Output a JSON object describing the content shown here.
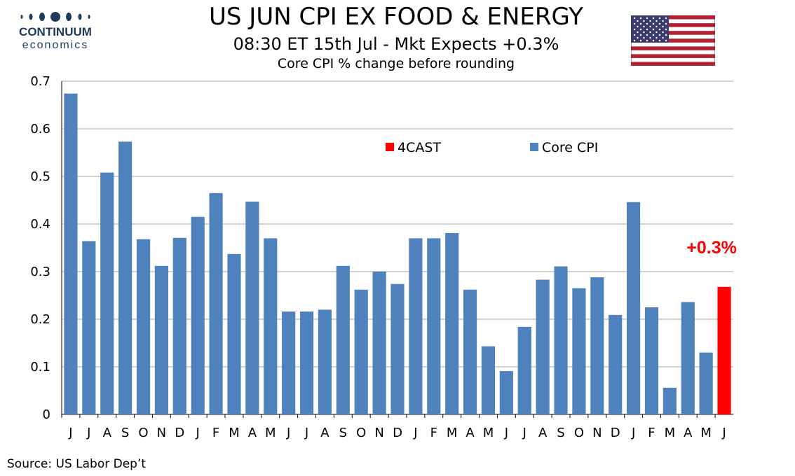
{
  "header": {
    "logo_name": "CONTINUUM",
    "logo_sub": "economics",
    "title": "US JUN CPI EX FOOD & ENERGY",
    "subtitle": "08:30 ET 15th Jul - Mkt Expects +0.3%",
    "subtitle2": "Core CPI % change before rounding",
    "flag_icon": "us-flag-icon"
  },
  "footer": {
    "source": "Source: US Labor Dep’t"
  },
  "colors": {
    "core": "#4f81bd",
    "forecast": "#ff0000",
    "grid": "#a6a6a6",
    "logo": "#1f3a5a"
  },
  "chart_data": {
    "type": "bar",
    "title": "US JUN CPI EX FOOD & ENERGY",
    "ylabel": "Core CPI % change before rounding",
    "xlabel": "",
    "ylim": [
      0,
      0.7
    ],
    "yticks": [
      0,
      0.1,
      0.2,
      0.3,
      0.4,
      0.5,
      0.6,
      0.7
    ],
    "ytick_labels": [
      "0",
      "0.1",
      "0.2",
      "0.3",
      "0.4",
      "0.5",
      "0.6",
      "0.7"
    ],
    "grid": true,
    "legend_position": "top-center",
    "categories": [
      "J",
      "J",
      "A",
      "S",
      "O",
      "N",
      "D",
      "J",
      "F",
      "M",
      "A",
      "M",
      "J",
      "J",
      "A",
      "S",
      "O",
      "N",
      "D",
      "J",
      "F",
      "M",
      "A",
      "M",
      "J",
      "J",
      "A",
      "S",
      "O",
      "N",
      "D",
      "J",
      "F",
      "M",
      "A",
      "M",
      "J"
    ],
    "series": [
      {
        "name": "Core CPI",
        "values": [
          0.674,
          0.364,
          0.508,
          0.573,
          0.368,
          0.312,
          0.371,
          0.415,
          0.465,
          0.337,
          0.447,
          0.37,
          0.216,
          0.216,
          0.22,
          0.312,
          0.262,
          0.3,
          0.274,
          0.37,
          0.37,
          0.381,
          0.262,
          0.143,
          0.091,
          0.184,
          0.283,
          0.311,
          0.265,
          0.288,
          0.209,
          0.446,
          0.225,
          0.056,
          0.236,
          0.13,
          null
        ]
      },
      {
        "name": "4CAST",
        "values": [
          null,
          null,
          null,
          null,
          null,
          null,
          null,
          null,
          null,
          null,
          null,
          null,
          null,
          null,
          null,
          null,
          null,
          null,
          null,
          null,
          null,
          null,
          null,
          null,
          null,
          null,
          null,
          null,
          null,
          null,
          null,
          null,
          null,
          null,
          null,
          null,
          0.268
        ]
      }
    ],
    "legend": [
      "4CAST",
      "Core CPI"
    ],
    "annotation": "+0.3%"
  }
}
